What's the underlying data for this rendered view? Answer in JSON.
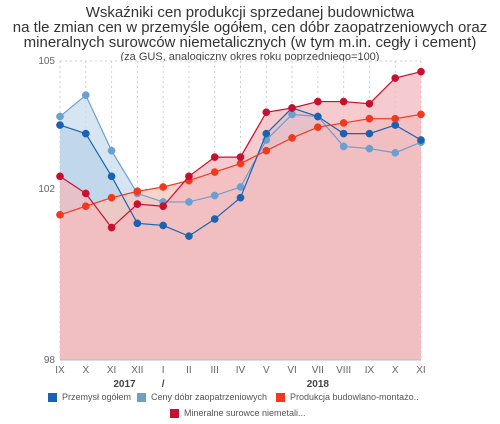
{
  "chart_data": {
    "type": "area",
    "title_lines": [
      "Wskaźniki cen produkcji sprzedanej budownictwa",
      "na tle zmian cen w przemyśle ogółem, cen dóbr zaopatrzeniowych oraz",
      "mineralnych surowców niemetalicznych (w tym m.in. cegły i cement)"
    ],
    "subtitle": "(za GUS, analogiczny okres roku poprzedniego=100)",
    "categories": [
      "IX",
      "X",
      "XI",
      "XII",
      "I",
      "II",
      "III",
      "IV",
      "V",
      "VI",
      "VII",
      "VIII",
      "IX",
      "X",
      "XI"
    ],
    "year_labels": [
      {
        "label": "2017",
        "at": 2.5
      },
      {
        "label": "/",
        "at": 4.0
      },
      {
        "label": "2018",
        "at": 10.0
      }
    ],
    "ylim": [
      98,
      105
    ],
    "yticks": [
      98,
      102,
      105
    ],
    "grid": true,
    "legend_position": "bottom",
    "series": [
      {
        "name": "Przemysł ogółem",
        "color": "#1a63b0",
        "fill": "#b9d3ea",
        "values": [
          103.5,
          103.3,
          102.3,
          101.2,
          101.15,
          100.9,
          101.3,
          101.8,
          103.3,
          103.9,
          103.7,
          103.3,
          103.3,
          103.5,
          103.15
        ]
      },
      {
        "name": "Ceny dóbr zaopatrzeniowych",
        "color": "#6a9fcf",
        "fill": "#c9dcee",
        "values": [
          103.7,
          104.2,
          102.9,
          101.9,
          101.7,
          101.7,
          101.85,
          102.05,
          103.15,
          103.75,
          103.7,
          103.0,
          102.95,
          102.85,
          103.1
        ]
      },
      {
        "name": "Produkcja budowlano-montażowa",
        "color": "#f2391f",
        "fill": "#f7c4bb",
        "values": [
          101.4,
          101.6,
          101.8,
          101.95,
          102.05,
          102.2,
          102.4,
          102.6,
          102.9,
          103.2,
          103.45,
          103.55,
          103.65,
          103.65,
          103.75
        ]
      },
      {
        "name": "Mineralne surowce niemetaliczne",
        "legend_label": "Mineralne surowce niemetali...",
        "color": "#c8102e",
        "fill": "#f3b9bf",
        "values": [
          102.3,
          101.9,
          101.1,
          101.65,
          101.6,
          102.3,
          102.75,
          102.75,
          103.8,
          103.9,
          104.05,
          104.05,
          104.0,
          104.6,
          104.75
        ]
      }
    ],
    "legend_labels": [
      "Przemysł ogółem",
      "Ceny dóbr zaopatrzeniowych",
      "Produkcja budowlano-montażo..",
      "Mineralne surowce niemetali..."
    ]
  }
}
